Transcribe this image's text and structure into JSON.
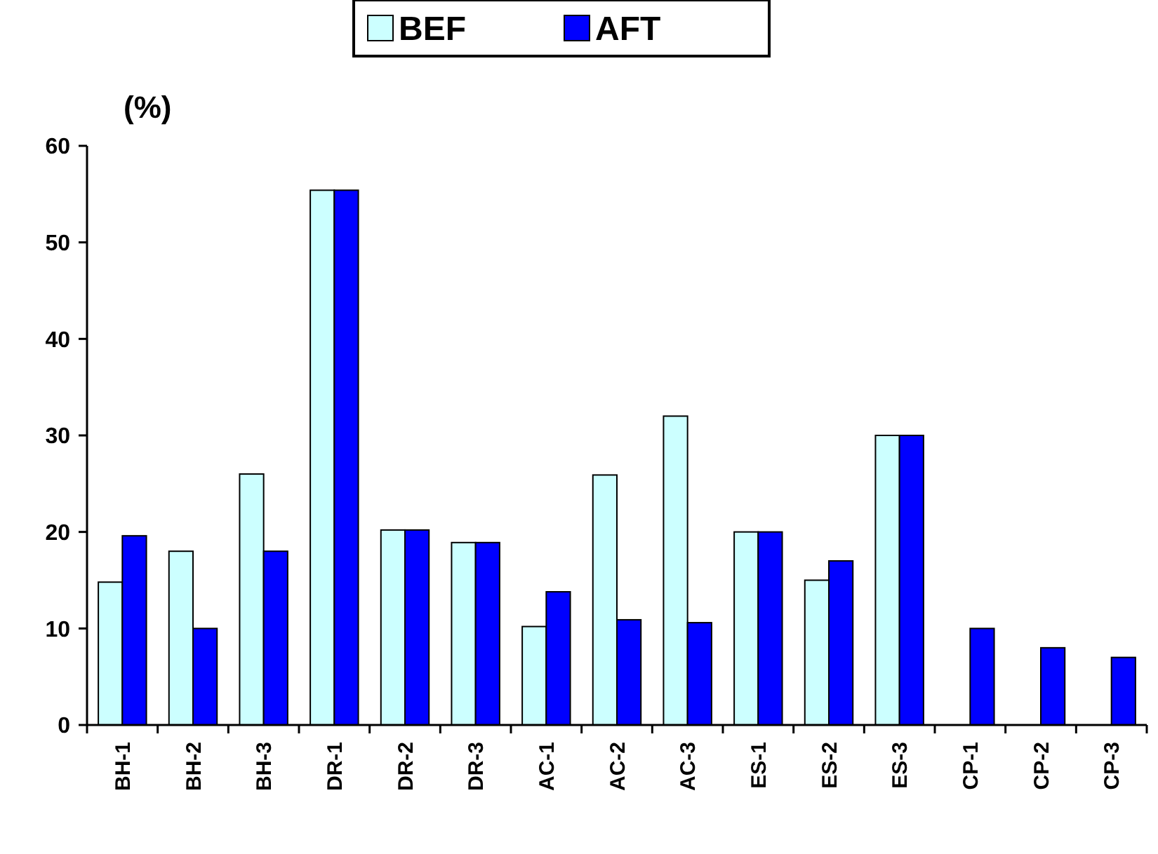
{
  "chart_data": {
    "type": "bar",
    "ylabel": "(%)",
    "categories": [
      "BH-1",
      "BH-2",
      "BH-3",
      "DR-1",
      "DR-2",
      "DR-3",
      "AC-1",
      "AC-2",
      "AC-3",
      "ES-1",
      "ES-2",
      "ES-3",
      "CP-1",
      "CP-2",
      "CP-3"
    ],
    "series": [
      {
        "name": "BEF",
        "color": "#ccffff",
        "values": [
          14.8,
          18,
          26,
          55.4,
          20.2,
          18.9,
          10.2,
          25.9,
          32,
          20,
          15,
          30,
          null,
          null,
          null
        ]
      },
      {
        "name": "AFT",
        "color": "#0000ff",
        "values": [
          19.6,
          10,
          18,
          55.4,
          20.2,
          18.9,
          13.8,
          10.9,
          10.6,
          20,
          17,
          30,
          10,
          8,
          7
        ]
      }
    ],
    "ylim": [
      0,
      60
    ],
    "yticks": [
      0,
      10,
      20,
      30,
      40,
      50,
      60
    ],
    "grid": false,
    "legend": "top"
  }
}
